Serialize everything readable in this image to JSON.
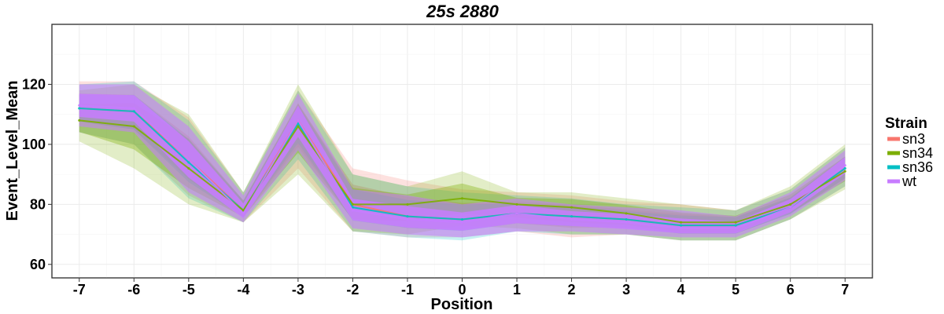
{
  "chart_data": {
    "type": "line",
    "title": "25s 2880",
    "xlabel": "Position",
    "ylabel": "Event_Level_Mean",
    "x": [
      -7,
      -6,
      -5,
      -4,
      -3,
      -2,
      -1,
      0,
      1,
      2,
      3,
      4,
      5,
      6,
      7
    ],
    "x_tick_labels": [
      "-7",
      "-6",
      "-5",
      "-4",
      "-3",
      "-2",
      "-1",
      "0",
      "1",
      "2",
      "3",
      "4",
      "5",
      "6",
      "7"
    ],
    "y_ticks": [
      60,
      80,
      100,
      120
    ],
    "xlim": [
      -7.5,
      7.5
    ],
    "ylim": [
      55.5,
      140
    ],
    "grid": true,
    "legend_title": "Strain",
    "legend_position": "right",
    "series": [
      {
        "name": "sn3",
        "color": "#F8766D",
        "mean": [
          112,
          111,
          95,
          78,
          108,
          80,
          76,
          75,
          77,
          76,
          75,
          73,
          73,
          79,
          92
        ],
        "low": [
          104,
          100,
          83,
          74,
          92,
          71,
          69,
          69,
          71,
          69,
          70,
          68,
          68,
          75,
          86
        ],
        "high": [
          121,
          121,
          109,
          84,
          118,
          92,
          88,
          85,
          84,
          83,
          81,
          80,
          78,
          85,
          99
        ]
      },
      {
        "name": "sn34",
        "color": "#7CAE00",
        "mean": [
          108,
          106,
          92,
          78,
          106,
          80,
          80,
          82,
          80,
          79,
          77,
          74,
          74,
          80,
          91
        ],
        "low": [
          101,
          92,
          80,
          74,
          90,
          71,
          70,
          73,
          72,
          70,
          70,
          68,
          68,
          75,
          85
        ],
        "high": [
          118,
          120,
          110,
          84,
          120,
          90,
          86,
          91,
          84,
          84,
          82,
          80,
          78,
          86,
          100
        ]
      },
      {
        "name": "sn36",
        "color": "#00BFC4",
        "mean": [
          112,
          111,
          94,
          78,
          107,
          79,
          76,
          75,
          77,
          76,
          75,
          73,
          73,
          79,
          92
        ],
        "low": [
          104,
          100,
          82,
          74,
          95,
          71,
          69,
          68,
          71,
          70,
          70,
          68,
          68,
          75,
          86
        ],
        "high": [
          120,
          121,
          108,
          84,
          118,
          90,
          86,
          84,
          83,
          82,
          80,
          79,
          78,
          85,
          99
        ]
      },
      {
        "name": "wt",
        "color": "#C77CFF",
        "mean": [
          113,
          112,
          95,
          77,
          108,
          78,
          75,
          74,
          77,
          75,
          74,
          72,
          72,
          79,
          93
        ],
        "low": [
          106,
          104,
          84,
          74,
          98,
          72,
          70,
          69,
          71,
          71,
          70,
          69,
          69,
          76,
          88
        ],
        "high": [
          120,
          120,
          106,
          83,
          117,
          85,
          83,
          80,
          82,
          80,
          79,
          78,
          76,
          84,
          98
        ]
      }
    ]
  }
}
